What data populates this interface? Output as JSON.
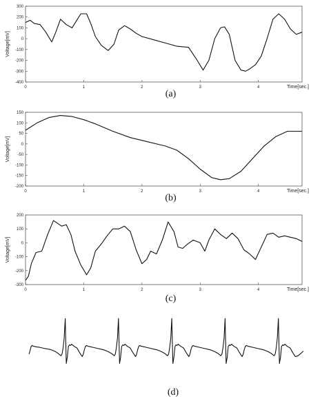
{
  "chart_data": [
    {
      "panel": "(a)",
      "type": "line",
      "xlabel": "Time[sec.]",
      "ylabel": "Voltage[mV]",
      "xlim": [
        0,
        4.75
      ],
      "ylim": [
        -400,
        300
      ],
      "xticks": [
        0,
        1,
        2,
        3,
        4
      ],
      "yticks": [
        -400,
        -300,
        -200,
        -100,
        0,
        100,
        200,
        300
      ],
      "series": [
        {
          "x": [
            0,
            0.08,
            0.15,
            0.25,
            0.35,
            0.45,
            0.52,
            0.6,
            0.7,
            0.8,
            0.88,
            0.95,
            1.05,
            1.12,
            1.2,
            1.3,
            1.42,
            1.52,
            1.6,
            1.7,
            1.8,
            1.9,
            2.0,
            2.2,
            2.4,
            2.6,
            2.8,
            2.95,
            3.05,
            3.15,
            3.25,
            3.35,
            3.42,
            3.5,
            3.6,
            3.7,
            3.78,
            3.85,
            3.95,
            4.05,
            4.15,
            4.25,
            4.35,
            4.45,
            4.55,
            4.65,
            4.75
          ],
          "y": [
            150,
            170,
            140,
            130,
            60,
            -30,
            60,
            180,
            130,
            100,
            170,
            230,
            230,
            140,
            20,
            -60,
            -110,
            -50,
            80,
            120,
            90,
            50,
            20,
            -10,
            -40,
            -70,
            -80,
            -200,
            -290,
            -200,
            0,
            100,
            110,
            40,
            -200,
            -290,
            -300,
            -280,
            -240,
            -160,
            0,
            180,
            230,
            180,
            90,
            40,
            60
          ]
        }
      ]
    },
    {
      "panel": "(b)",
      "type": "line",
      "xlabel": "Time[sec.]",
      "ylabel": "Voltage[mV]",
      "xlim": [
        0,
        4.75
      ],
      "ylim": [
        -200,
        150
      ],
      "xticks": [
        0,
        1,
        2,
        3,
        4
      ],
      "yticks": [
        -200,
        -150,
        -100,
        -50,
        0,
        50,
        100,
        150
      ],
      "series": [
        {
          "x": [
            0,
            0.2,
            0.4,
            0.6,
            0.8,
            1.0,
            1.2,
            1.5,
            1.8,
            2.1,
            2.4,
            2.6,
            2.8,
            3.0,
            3.2,
            3.35,
            3.5,
            3.7,
            3.9,
            4.1,
            4.3,
            4.5,
            4.75
          ],
          "y": [
            65,
            100,
            125,
            135,
            130,
            115,
            95,
            60,
            30,
            10,
            -10,
            -30,
            -70,
            -120,
            -160,
            -170,
            -165,
            -130,
            -70,
            -10,
            35,
            60,
            60
          ]
        }
      ]
    },
    {
      "panel": "(c)",
      "type": "line",
      "xlabel": "Time[sec.]",
      "ylabel": "Voltage[mV]",
      "xlim": [
        0,
        4.75
      ],
      "ylim": [
        -300,
        200
      ],
      "xticks": [
        0,
        1,
        2,
        3,
        4
      ],
      "yticks": [
        -300,
        -200,
        -100,
        0,
        100,
        200
      ],
      "series": [
        {
          "x": [
            0,
            0.05,
            0.1,
            0.18,
            0.28,
            0.38,
            0.48,
            0.55,
            0.62,
            0.7,
            0.78,
            0.85,
            0.95,
            1.05,
            1.12,
            1.2,
            1.3,
            1.4,
            1.5,
            1.6,
            1.7,
            1.8,
            1.9,
            2.0,
            2.08,
            2.15,
            2.25,
            2.35,
            2.45,
            2.55,
            2.62,
            2.7,
            2.78,
            2.88,
            3.0,
            3.08,
            3.15,
            3.25,
            3.35,
            3.45,
            3.55,
            3.65,
            3.75,
            3.85,
            3.95,
            4.05,
            4.15,
            4.25,
            4.35,
            4.45,
            4.55,
            4.65,
            4.75
          ],
          "y": [
            -270,
            -240,
            -150,
            -70,
            -60,
            60,
            160,
            140,
            120,
            130,
            60,
            -60,
            -160,
            -230,
            -180,
            -60,
            -10,
            50,
            100,
            100,
            120,
            80,
            -50,
            -150,
            -120,
            -60,
            -80,
            20,
            150,
            80,
            -30,
            -40,
            -10,
            20,
            0,
            -60,
            20,
            100,
            60,
            30,
            70,
            30,
            -50,
            -80,
            -120,
            -30,
            60,
            70,
            40,
            50,
            40,
            30,
            10
          ]
        }
      ]
    },
    {
      "panel": "(d)",
      "type": "line",
      "ylim": [
        -1,
        1
      ],
      "series": [
        {
          "x": [
            0,
            0.02,
            0.04,
            0.06,
            0.08,
            0.1,
            0.15,
            0.2,
            0.25,
            0.3,
            0.35,
            0.4,
            0.45,
            0.5,
            0.55,
            0.6,
            0.62,
            0.64,
            0.66,
            0.68,
            0.7,
            0.72,
            0.74,
            0.76,
            0.78,
            0.8,
            0.85,
            0.9,
            0.95,
            1.0,
            1.02,
            1.04,
            1.06,
            1.08,
            1.1,
            1.15,
            1.2,
            1.25,
            1.3,
            1.35,
            1.4,
            1.45,
            1.5,
            1.55,
            1.6,
            1.62,
            1.64,
            1.66,
            1.68,
            1.7,
            1.72,
            1.74,
            1.76,
            1.78,
            1.8,
            1.85,
            1.9,
            1.95,
            2.0,
            2.02,
            2.04,
            2.06,
            2.08,
            2.1,
            2.15,
            2.2,
            2.25,
            2.3,
            2.35,
            2.4,
            2.45,
            2.5,
            2.55,
            2.6,
            2.62,
            2.64,
            2.66,
            2.68,
            2.7,
            2.72,
            2.74,
            2.76,
            2.78,
            2.8,
            2.85,
            2.9,
            2.95,
            3.0,
            3.02,
            3.04,
            3.06,
            3.08,
            3.1,
            3.15,
            3.2,
            3.25,
            3.3,
            3.35,
            3.4,
            3.45,
            3.5,
            3.55,
            3.6,
            3.62,
            3.64,
            3.66,
            3.68,
            3.7,
            3.72,
            3.74,
            3.76,
            3.78,
            3.8,
            3.85,
            3.9,
            3.95,
            4.0,
            4.02,
            4.04,
            4.06,
            4.08,
            4.1,
            4.15,
            4.2,
            4.25,
            4.3,
            4.35,
            4.4,
            4.45,
            4.5,
            4.55,
            4.6,
            4.62,
            4.64,
            4.66,
            4.68,
            4.7,
            4.72,
            4.74,
            4.76,
            4.78,
            4.8,
            4.85,
            4.9,
            4.95,
            5.0,
            5.05,
            5.1,
            5.15
          ],
          "y": [
            -0.2,
            -0.1,
            0.05,
            0.08,
            0.06,
            0.05,
            0.03,
            0.02,
            0.0,
            -0.02,
            -0.03,
            -0.05,
            -0.08,
            -0.12,
            -0.18,
            -0.25,
            -0.2,
            0.0,
            0.3,
            0.95,
            -0.5,
            -0.3,
            0.05,
            0.1,
            0.08,
            0.12,
            0.05,
            0.0,
            -0.15,
            -0.28,
            -0.2,
            -0.05,
            0.05,
            0.08,
            0.06,
            0.04,
            0.02,
            0.0,
            -0.02,
            -0.04,
            -0.06,
            -0.09,
            -0.13,
            -0.18,
            -0.25,
            -0.2,
            0.0,
            0.3,
            0.95,
            -0.5,
            -0.3,
            0.05,
            0.1,
            0.08,
            0.12,
            0.05,
            0.0,
            -0.15,
            -0.28,
            -0.2,
            -0.05,
            0.05,
            0.08,
            0.06,
            0.04,
            0.02,
            0.0,
            -0.02,
            -0.04,
            -0.06,
            -0.09,
            -0.13,
            -0.18,
            -0.25,
            -0.2,
            0.0,
            0.3,
            0.95,
            -0.5,
            -0.3,
            0.05,
            0.1,
            0.08,
            0.12,
            0.05,
            0.0,
            -0.15,
            -0.28,
            -0.2,
            -0.05,
            0.05,
            0.08,
            0.06,
            0.04,
            0.02,
            0.0,
            -0.02,
            -0.04,
            -0.06,
            -0.09,
            -0.13,
            -0.18,
            -0.25,
            -0.2,
            0.0,
            0.3,
            0.95,
            -0.5,
            -0.3,
            0.05,
            0.1,
            0.08,
            0.12,
            0.05,
            0.0,
            -0.15,
            -0.28,
            -0.2,
            -0.05,
            0.05,
            0.08,
            0.06,
            0.04,
            0.02,
            0.0,
            -0.02,
            -0.04,
            -0.06,
            -0.09,
            -0.13,
            -0.18,
            -0.25,
            -0.2,
            0.0,
            0.3,
            0.95,
            -0.5,
            -0.3,
            0.05,
            0.1,
            0.08,
            0.12,
            0.05,
            0.0,
            -0.15,
            -0.28,
            -0.25,
            -0.18,
            -0.1
          ]
        }
      ]
    }
  ]
}
